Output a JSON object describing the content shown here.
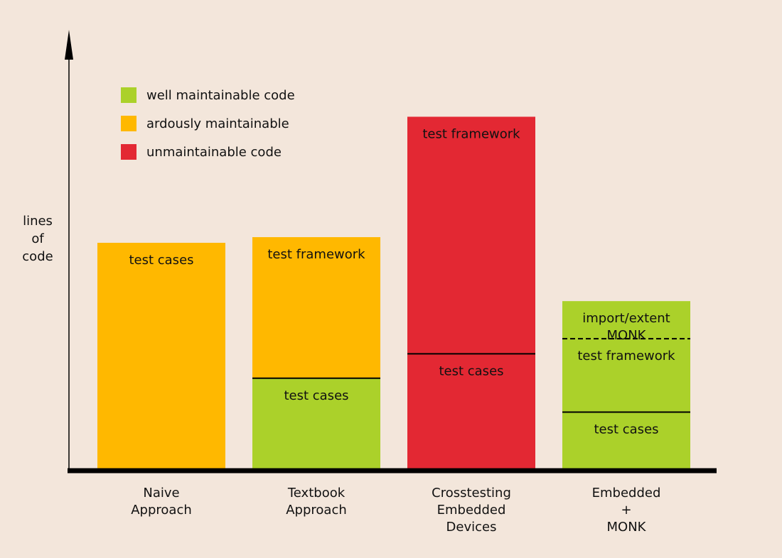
{
  "chart_data": {
    "type": "bar",
    "stacked": true,
    "ylabel": [
      "lines",
      "of",
      "code"
    ],
    "xlabel": "",
    "grid": false,
    "legend_position": "top-left",
    "legend": [
      {
        "label": "well maintainable code",
        "color": "#abd12a"
      },
      {
        "label": "ardously maintainable",
        "color": "#ffb800"
      },
      {
        "label": "unmaintainable code",
        "color": "#e32833"
      }
    ],
    "ylim": [
      0,
      100
    ],
    "categories": [
      {
        "label_lines": [
          "Naive",
          "Approach"
        ],
        "segments": [
          {
            "label": [
              "test cases"
            ],
            "value": 60,
            "color": "#ffb800",
            "divider": "none"
          }
        ]
      },
      {
        "label_lines": [
          "Textbook",
          "Approach"
        ],
        "segments": [
          {
            "label": [
              "test cases"
            ],
            "value": 24,
            "color": "#abd12a",
            "divider": "none"
          },
          {
            "label": [
              "test framework"
            ],
            "value": 37.5,
            "color": "#ffb800",
            "divider": "solid"
          }
        ]
      },
      {
        "label_lines": [
          "Crosstesting",
          "Embedded",
          "Devices"
        ],
        "segments": [
          {
            "label": [
              "test cases"
            ],
            "value": 30.5,
            "color": "#e32833",
            "divider": "none"
          },
          {
            "label": [
              "test framework"
            ],
            "value": 63,
            "color": "#e32833",
            "divider": "solid"
          }
        ]
      },
      {
        "label_lines": [
          "Embedded",
          "+",
          "MONK"
        ],
        "segments": [
          {
            "label": [
              "test cases"
            ],
            "value": 15,
            "color": "#abd12a",
            "divider": "none"
          },
          {
            "label": [
              "test framework"
            ],
            "value": 19.5,
            "color": "#abd12a",
            "divider": "solid"
          },
          {
            "label": [
              "import/extent",
              "MONK"
            ],
            "value": 10,
            "color": "#abd12a",
            "divider": "dashed"
          }
        ]
      }
    ]
  }
}
